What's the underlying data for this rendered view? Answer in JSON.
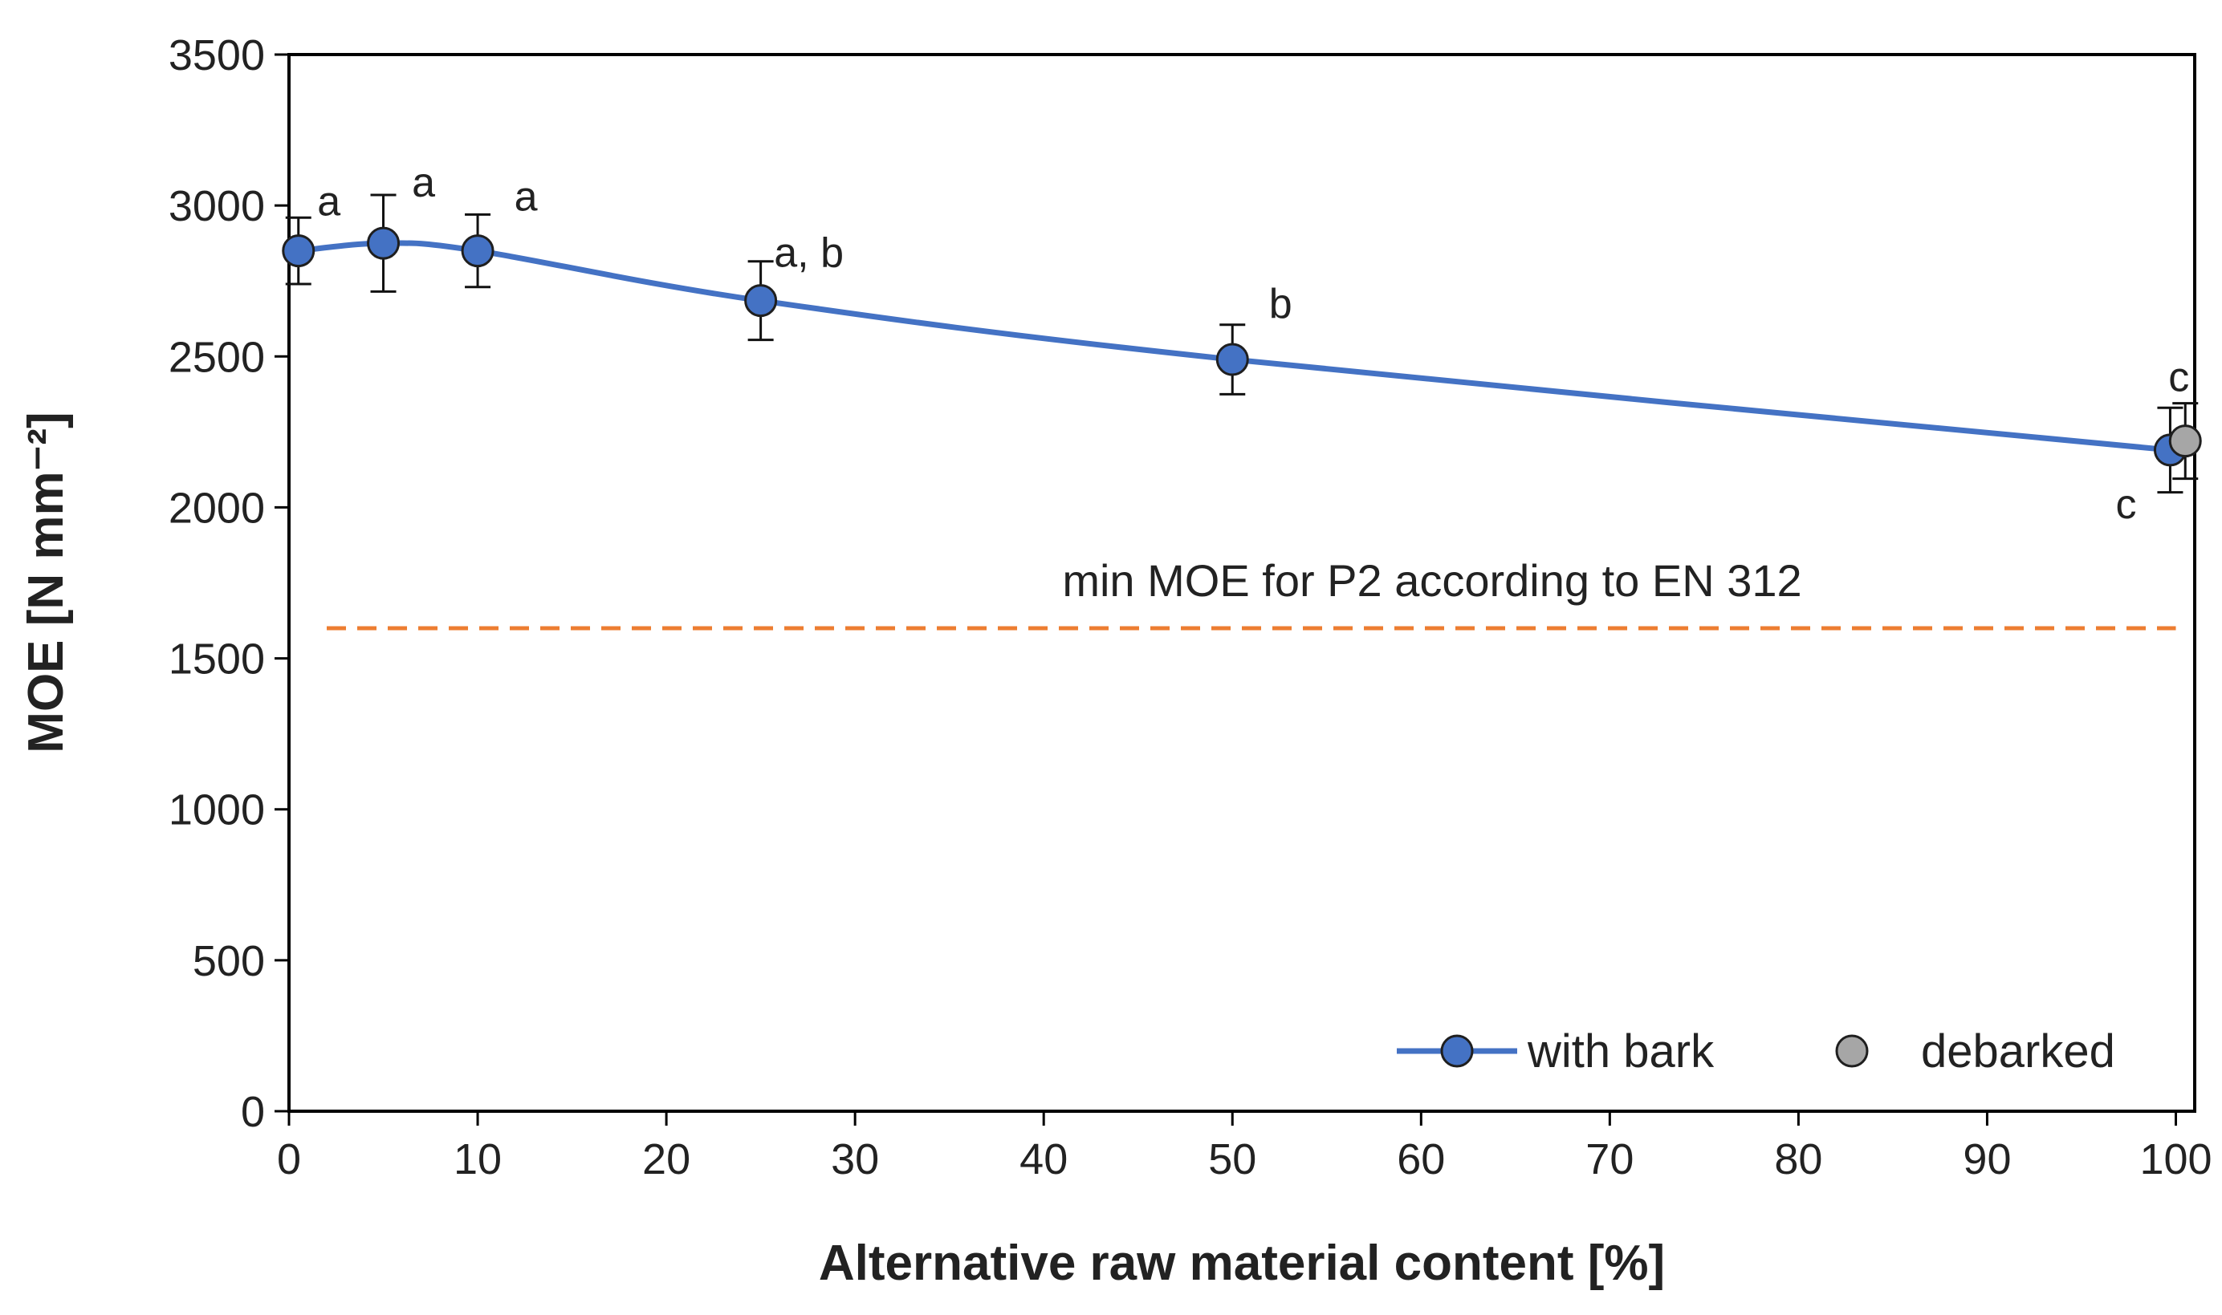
{
  "chart_data": {
    "type": "line",
    "xlabel": "Alternative raw material content [%]",
    "ylabel": "MOE [N mm⁻²]",
    "xlim": [
      0,
      101
    ],
    "ylim": [
      0,
      3500
    ],
    "xticks": [
      "0",
      "10",
      "20",
      "30",
      "40",
      "50",
      "60",
      "70",
      "80",
      "90",
      "100"
    ],
    "yticks": [
      "0",
      "500",
      "1000",
      "1500",
      "2000",
      "2500",
      "3000",
      "3500"
    ],
    "grid": false,
    "legend_position": "bottom-right",
    "series": [
      {
        "name": "with bark",
        "color": "#4472C4",
        "marker": "circle",
        "line": true,
        "points": [
          {
            "x": 0.5,
            "y": 2850,
            "err": 110,
            "label": "a"
          },
          {
            "x": 5,
            "y": 2875,
            "err": 160,
            "label": "a"
          },
          {
            "x": 10,
            "y": 2850,
            "err": 120,
            "label": "a"
          },
          {
            "x": 25,
            "y": 2685,
            "err": 130,
            "label": "a, b"
          },
          {
            "x": 50,
            "y": 2490,
            "err": 115,
            "label": "b"
          },
          {
            "x": 99.7,
            "y": 2190,
            "err": 140,
            "label": "c"
          }
        ]
      },
      {
        "name": "debarked",
        "color": "#A6A6A6",
        "marker": "circle",
        "line": false,
        "points": [
          {
            "x": 100.5,
            "y": 2220,
            "err": 125,
            "label": "c"
          }
        ]
      }
    ],
    "reference_line": {
      "label": "min MOE for P2 according to EN 312",
      "y": 1600,
      "x_range": [
        2,
        100
      ],
      "color": "#ED7D31",
      "style": "dashed"
    }
  }
}
